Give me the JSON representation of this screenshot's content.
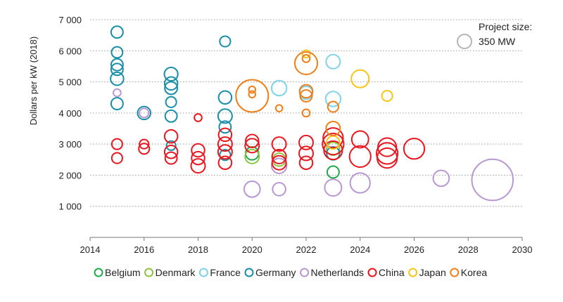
{
  "chart_data": {
    "type": "scatter",
    "subtype": "bubble",
    "title": "",
    "xlabel": "",
    "ylabel": "Dollars per kW (2018)",
    "xlim": [
      2014,
      2030
    ],
    "ylim": [
      0,
      7000
    ],
    "x_ticks": [
      2014,
      2016,
      2018,
      2020,
      2022,
      2024,
      2026,
      2028,
      2030
    ],
    "y_ticks": [
      1000,
      2000,
      3000,
      4000,
      5000,
      6000,
      7000
    ],
    "y_tick_labels": [
      "1 000",
      "2 000",
      "3 000",
      "4 000",
      "5 000",
      "6 000",
      "7 000"
    ],
    "gridlines": "horizontal dotted",
    "size_legend": {
      "title": "Project size:",
      "label": "350 MW",
      "mw": 350
    },
    "legend_position": "bottom",
    "series": [
      {
        "name": "Belgium",
        "color": "#22a84a",
        "points": [
          {
            "x": 2020,
            "y": 2700,
            "mw": 300
          },
          {
            "x": 2023,
            "y": 2100,
            "mw": 250
          }
        ]
      },
      {
        "name": "Denmark",
        "color": "#8cc63f",
        "points": [
          {
            "x": 2020,
            "y": 2600,
            "mw": 350
          },
          {
            "x": 2021,
            "y": 2500,
            "mw": 300
          },
          {
            "x": 2023,
            "y": 2850,
            "mw": 300
          }
        ]
      },
      {
        "name": "France",
        "color": "#80d4e6",
        "points": [
          {
            "x": 2021,
            "y": 4800,
            "mw": 400
          },
          {
            "x": 2022,
            "y": 4650,
            "mw": 300
          },
          {
            "x": 2023,
            "y": 5650,
            "mw": 350
          },
          {
            "x": 2023,
            "y": 4450,
            "mw": 400
          }
        ]
      },
      {
        "name": "Germany",
        "color": "#1a8ea6",
        "points": [
          {
            "x": 2015,
            "y": 6600,
            "mw": 250
          },
          {
            "x": 2015,
            "y": 5950,
            "mw": 220
          },
          {
            "x": 2015,
            "y": 5550,
            "mw": 250
          },
          {
            "x": 2015,
            "y": 5400,
            "mw": 250
          },
          {
            "x": 2015,
            "y": 5100,
            "mw": 300
          },
          {
            "x": 2015,
            "y": 4300,
            "mw": 250
          },
          {
            "x": 2016,
            "y": 4000,
            "mw": 300
          },
          {
            "x": 2017,
            "y": 5250,
            "mw": 320
          },
          {
            "x": 2017,
            "y": 4950,
            "mw": 300
          },
          {
            "x": 2017,
            "y": 4800,
            "mw": 280
          },
          {
            "x": 2017,
            "y": 4350,
            "mw": 200
          },
          {
            "x": 2017,
            "y": 3900,
            "mw": 250
          },
          {
            "x": 2017,
            "y": 2950,
            "mw": 150
          },
          {
            "x": 2019,
            "y": 6300,
            "mw": 200
          },
          {
            "x": 2019,
            "y": 4500,
            "mw": 300
          },
          {
            "x": 2019,
            "y": 3900,
            "mw": 350
          },
          {
            "x": 2019,
            "y": 3550,
            "mw": 250
          },
          {
            "x": 2019,
            "y": 2650,
            "mw": 200
          },
          {
            "x": 2023,
            "y": 2700,
            "mw": 300
          }
        ]
      },
      {
        "name": "Netherlands",
        "color": "#b898d0",
        "points": [
          {
            "x": 2015,
            "y": 4650,
            "mw": 100
          },
          {
            "x": 2016,
            "y": 4000,
            "mw": 150
          },
          {
            "x": 2020,
            "y": 1550,
            "mw": 450
          },
          {
            "x": 2021,
            "y": 1550,
            "mw": 300
          },
          {
            "x": 2021,
            "y": 2300,
            "mw": 400
          },
          {
            "x": 2023,
            "y": 1600,
            "mw": 500
          },
          {
            "x": 2024,
            "y": 1750,
            "mw": 700
          },
          {
            "x": 2027,
            "y": 1900,
            "mw": 450
          },
          {
            "x": 2028.9,
            "y": 1850,
            "mw": 3000
          }
        ]
      },
      {
        "name": "China",
        "color": "#e8171f",
        "points": [
          {
            "x": 2015,
            "y": 3000,
            "mw": 200
          },
          {
            "x": 2015,
            "y": 2550,
            "mw": 200
          },
          {
            "x": 2016,
            "y": 3000,
            "mw": 150
          },
          {
            "x": 2016,
            "y": 2850,
            "mw": 200
          },
          {
            "x": 2017,
            "y": 3250,
            "mw": 300
          },
          {
            "x": 2017,
            "y": 2750,
            "mw": 300
          },
          {
            "x": 2017,
            "y": 2550,
            "mw": 250
          },
          {
            "x": 2018,
            "y": 3850,
            "mw": 100
          },
          {
            "x": 2018,
            "y": 2800,
            "mw": 300
          },
          {
            "x": 2018,
            "y": 2550,
            "mw": 300
          },
          {
            "x": 2018,
            "y": 2300,
            "mw": 350
          },
          {
            "x": 2019,
            "y": 3300,
            "mw": 300
          },
          {
            "x": 2019,
            "y": 3000,
            "mw": 350
          },
          {
            "x": 2019,
            "y": 2750,
            "mw": 350
          },
          {
            "x": 2019,
            "y": 2400,
            "mw": 300
          },
          {
            "x": 2020,
            "y": 3100,
            "mw": 300
          },
          {
            "x": 2020,
            "y": 2950,
            "mw": 350
          },
          {
            "x": 2021,
            "y": 3000,
            "mw": 350
          },
          {
            "x": 2021,
            "y": 2600,
            "mw": 350
          },
          {
            "x": 2021,
            "y": 2400,
            "mw": 350
          },
          {
            "x": 2022,
            "y": 3050,
            "mw": 350
          },
          {
            "x": 2022,
            "y": 2700,
            "mw": 350
          },
          {
            "x": 2022,
            "y": 2400,
            "mw": 300
          },
          {
            "x": 2023,
            "y": 3200,
            "mw": 700
          },
          {
            "x": 2023,
            "y": 3000,
            "mw": 800
          },
          {
            "x": 2023,
            "y": 2800,
            "mw": 600
          },
          {
            "x": 2024,
            "y": 3150,
            "mw": 500
          },
          {
            "x": 2024,
            "y": 2600,
            "mw": 800
          },
          {
            "x": 2025,
            "y": 2900,
            "mw": 600
          },
          {
            "x": 2025,
            "y": 2700,
            "mw": 800
          },
          {
            "x": 2025,
            "y": 2550,
            "mw": 700
          },
          {
            "x": 2026,
            "y": 2850,
            "mw": 750
          }
        ]
      },
      {
        "name": "Japan",
        "color": "#f5c518",
        "points": [
          {
            "x": 2022,
            "y": 5900,
            "mw": 100
          },
          {
            "x": 2024,
            "y": 5100,
            "mw": 550
          },
          {
            "x": 2025,
            "y": 4550,
            "mw": 200
          },
          {
            "x": 2023,
            "y": 3050,
            "mw": 300
          }
        ]
      },
      {
        "name": "Korea",
        "color": "#ef7f1a",
        "points": [
          {
            "x": 2020,
            "y": 4550,
            "mw": 1850
          },
          {
            "x": 2020,
            "y": 4750,
            "mw": 80
          },
          {
            "x": 2020,
            "y": 4600,
            "mw": 80
          },
          {
            "x": 2021,
            "y": 4150,
            "mw": 80
          },
          {
            "x": 2022,
            "y": 5600,
            "mw": 900
          },
          {
            "x": 2022,
            "y": 5750,
            "mw": 100
          },
          {
            "x": 2022,
            "y": 4700,
            "mw": 300
          },
          {
            "x": 2022,
            "y": 4550,
            "mw": 250
          },
          {
            "x": 2022,
            "y": 4000,
            "mw": 100
          },
          {
            "x": 2023,
            "y": 4200,
            "mw": 200
          },
          {
            "x": 2023,
            "y": 3500,
            "mw": 350
          }
        ]
      }
    ]
  }
}
